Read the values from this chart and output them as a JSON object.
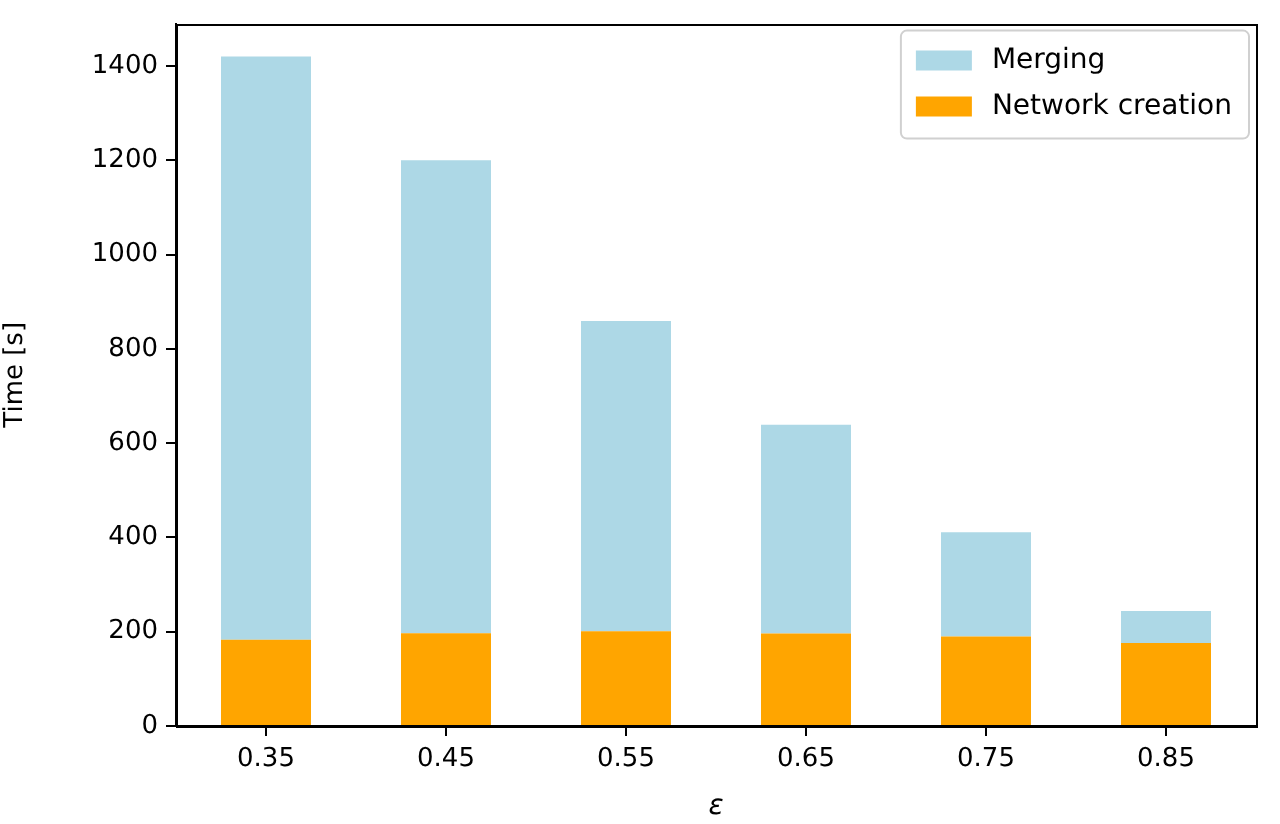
{
  "chart_data": {
    "type": "bar",
    "xlabel": "ε",
    "ylabel": "Time [s]",
    "categories": [
      "0.35",
      "0.45",
      "0.55",
      "0.65",
      "0.75",
      "0.85"
    ],
    "series": [
      {
        "name": "Network creation",
        "color": "#ffa500",
        "values": [
          183,
          197,
          201,
          196,
          190,
          176
        ]
      },
      {
        "name": "Merging",
        "color": "#add8e6",
        "values": [
          1237,
          1003,
          658,
          443,
          221,
          68
        ]
      }
    ],
    "stacked": true,
    "ylim": [
      0,
      1490
    ],
    "yticks": [
      0,
      200,
      400,
      600,
      800,
      1000,
      1200,
      1400
    ],
    "legend": "top right"
  }
}
